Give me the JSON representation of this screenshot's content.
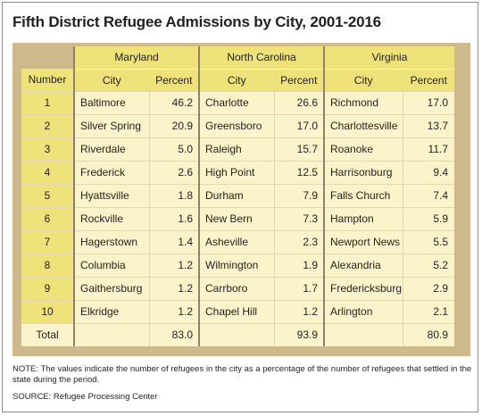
{
  "title": "Fifth District Refugee Admissions by City, 2001-2016",
  "headers": {
    "number": "Number",
    "states": [
      "Maryland",
      "North Carolina",
      "Virginia"
    ],
    "city": "City",
    "percent": "Percent"
  },
  "rows": [
    {
      "n": "1",
      "md": [
        "Baltimore",
        "46.2"
      ],
      "nc": [
        "Charlotte",
        "26.6"
      ],
      "va": [
        "Richmond",
        "17.0"
      ]
    },
    {
      "n": "2",
      "md": [
        "Silver Spring",
        "20.9"
      ],
      "nc": [
        "Greensboro",
        "17.0"
      ],
      "va": [
        "Charlottesville",
        "13.7"
      ]
    },
    {
      "n": "3",
      "md": [
        "Riverdale",
        "5.0"
      ],
      "nc": [
        "Raleigh",
        "15.7"
      ],
      "va": [
        "Roanoke",
        "11.7"
      ]
    },
    {
      "n": "4",
      "md": [
        "Frederick",
        "2.6"
      ],
      "nc": [
        "High Point",
        "12.5"
      ],
      "va": [
        "Harrisonburg",
        "9.4"
      ]
    },
    {
      "n": "5",
      "md": [
        "Hyattsville",
        "1.8"
      ],
      "nc": [
        "Durham",
        "7.9"
      ],
      "va": [
        "Falls Church",
        "7.4"
      ]
    },
    {
      "n": "6",
      "md": [
        "Rockville",
        "1.6"
      ],
      "nc": [
        "New Bern",
        "7.3"
      ],
      "va": [
        "Hampton",
        "5.9"
      ]
    },
    {
      "n": "7",
      "md": [
        "Hagerstown",
        "1.4"
      ],
      "nc": [
        "Asheville",
        "2.3"
      ],
      "va": [
        "Newport News",
        "5.5"
      ]
    },
    {
      "n": "8",
      "md": [
        "Columbia",
        "1.2"
      ],
      "nc": [
        "Wilmington",
        "1.9"
      ],
      "va": [
        "Alexandria",
        "5.2"
      ]
    },
    {
      "n": "9",
      "md": [
        "Gaithersburg",
        "1.2"
      ],
      "nc": [
        "Carrboro",
        "1.7"
      ],
      "va": [
        "Fredericksburg",
        "2.9"
      ]
    },
    {
      "n": "10",
      "md": [
        "Elkridge",
        "1.2"
      ],
      "nc": [
        "Chapel Hill",
        "1.2"
      ],
      "va": [
        "Arlington",
        "2.1"
      ]
    }
  ],
  "total": {
    "label": "Total",
    "md": "83.0",
    "nc": "93.9",
    "va": "80.9"
  },
  "note": "NOTE: The values indicate the number of refugees in the city as a percentage of the number of refugees that settled in the state during the period.",
  "source": "SOURCE: Refugee Processing Center",
  "colors": {
    "header": "#f0e27a",
    "cell": "#fbf3c9",
    "frame": "#ceb98d",
    "separator": "#8f826a"
  }
}
